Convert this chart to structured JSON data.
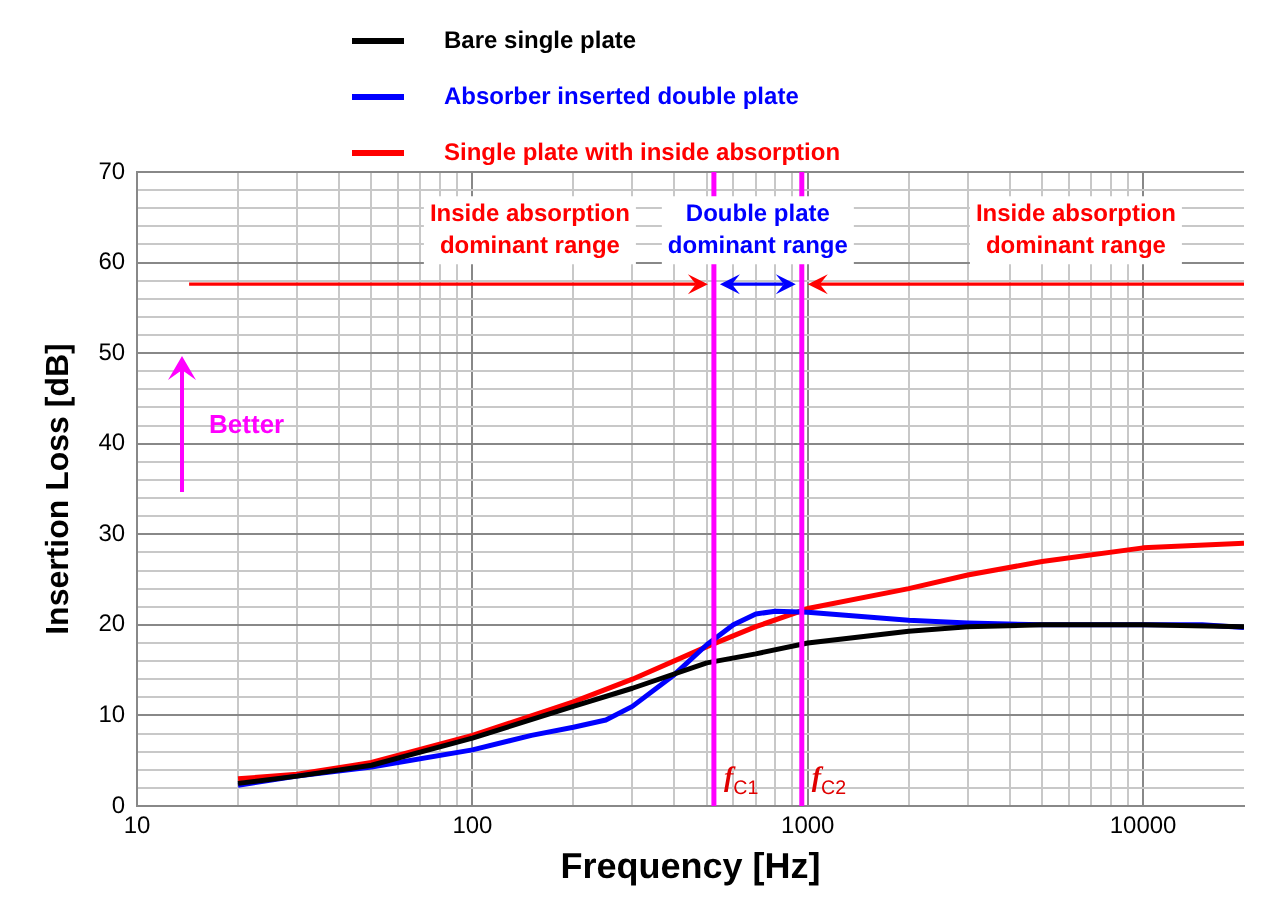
{
  "chart_data": {
    "type": "line",
    "xlabel": "Frequency [Hz]",
    "ylabel": "Insertion Loss [dB]",
    "log": "x",
    "xlim": [
      10,
      20000
    ],
    "ylim": [
      0,
      70
    ],
    "xticks": [
      10,
      {
        "value": 20,
        "label": null
      },
      {
        "value": 30,
        "label": null
      },
      {
        "value": 40,
        "label": null
      },
      {
        "value": 50,
        "label": null
      },
      {
        "value": 60,
        "label": null
      },
      {
        "value": 70,
        "label": null
      },
      {
        "value": 80,
        "label": null
      },
      {
        "value": 90,
        "label": null
      },
      100,
      {
        "value": 200,
        "label": null
      },
      {
        "value": 300,
        "label": null
      },
      {
        "value": 400,
        "label": null
      },
      {
        "value": 500,
        "label": null
      },
      {
        "value": 600,
        "label": null
      },
      {
        "value": 700,
        "label": null
      },
      {
        "value": 800,
        "label": null
      },
      {
        "value": 900,
        "label": null
      },
      1000,
      {
        "value": 2000,
        "label": null
      },
      {
        "value": 3000,
        "label": null
      },
      {
        "value": 4000,
        "label": null
      },
      {
        "value": 5000,
        "label": null
      },
      {
        "value": 6000,
        "label": null
      },
      {
        "value": 7000,
        "label": null
      },
      {
        "value": 8000,
        "label": null
      },
      {
        "value": 9000,
        "label": null
      },
      10000
    ],
    "yticks": [
      0,
      {
        "value": 2,
        "label": null
      },
      {
        "value": 4,
        "label": null
      },
      {
        "value": 6,
        "label": null
      },
      {
        "value": 8,
        "label": null
      },
      10,
      {
        "value": 12,
        "label": null
      },
      {
        "value": 14,
        "label": null
      },
      {
        "value": 16,
        "label": null
      },
      {
        "value": 18,
        "label": null
      },
      20,
      {
        "value": 22,
        "label": null
      },
      {
        "value": 24,
        "label": null
      },
      {
        "value": 26,
        "label": null
      },
      {
        "value": 28,
        "label": null
      },
      30,
      {
        "value": 32,
        "label": null
      },
      {
        "value": 34,
        "label": null
      },
      {
        "value": 36,
        "label": null
      },
      {
        "value": 38,
        "label": null
      },
      40,
      {
        "value": 42,
        "label": null
      },
      {
        "value": 44,
        "label": null
      },
      {
        "value": 46,
        "label": null
      },
      {
        "value": 48,
        "label": null
      },
      50,
      {
        "value": 52,
        "label": null
      },
      {
        "value": 54,
        "label": null
      },
      {
        "value": 56,
        "label": null
      },
      {
        "value": 58,
        "label": null
      },
      60,
      {
        "value": 62,
        "label": null
      },
      {
        "value": 64,
        "label": null
      },
      {
        "value": 66,
        "label": null
      },
      {
        "value": 68,
        "label": null
      },
      70
    ],
    "grid": true,
    "legend": "top",
    "marker": "none",
    "line_style": "solid",
    "series": [
      {
        "name": "Bare single plate",
        "color": "#000000",
        "x": [
          20,
          30,
          50,
          100,
          200,
          300,
          500,
          700,
          1000,
          2000,
          3000,
          5000,
          10000,
          20000
        ],
        "values": [
          2.5,
          3.3,
          4.5,
          7.5,
          11,
          13,
          15.8,
          16.8,
          18,
          19.3,
          19.8,
          20,
          20,
          19.8
        ]
      },
      {
        "name": "Absorber inserted double plate",
        "color": "#0000ff",
        "x": [
          20,
          30,
          50,
          100,
          150,
          200,
          250,
          300,
          400,
          500,
          600,
          700,
          800,
          1000,
          2000,
          3000,
          5000,
          10000,
          15000,
          20000
        ],
        "values": [
          2.3,
          3.3,
          4.3,
          6.2,
          7.8,
          8.7,
          9.5,
          11,
          14.5,
          17.8,
          20,
          21.2,
          21.5,
          21.4,
          20.5,
          20.2,
          20,
          20,
          20,
          19.7
        ]
      },
      {
        "name": "Single plate with inside absorption",
        "color": "#ff0000",
        "x": [
          20,
          30,
          50,
          100,
          200,
          300,
          500,
          700,
          1000,
          2000,
          3000,
          5000,
          10000,
          20000
        ],
        "values": [
          3,
          3.5,
          4.8,
          7.8,
          11.5,
          14,
          17.6,
          19.8,
          21.8,
          24,
          25.5,
          27,
          28.5,
          29
        ]
      }
    ],
    "ref_lines": [
      {
        "axis": "x",
        "value": 525,
        "label": "f$_{C1}$",
        "color": "#ff00ff"
      },
      {
        "axis": "x",
        "value": 960,
        "label": "f$_{C2}$",
        "color": "#ff00ff"
      }
    ],
    "annotations": [
      "Better",
      "Inside absorption\ndominant range",
      "Double plate\ndominant range",
      "Inside absorption\ndominant range"
    ]
  }
}
